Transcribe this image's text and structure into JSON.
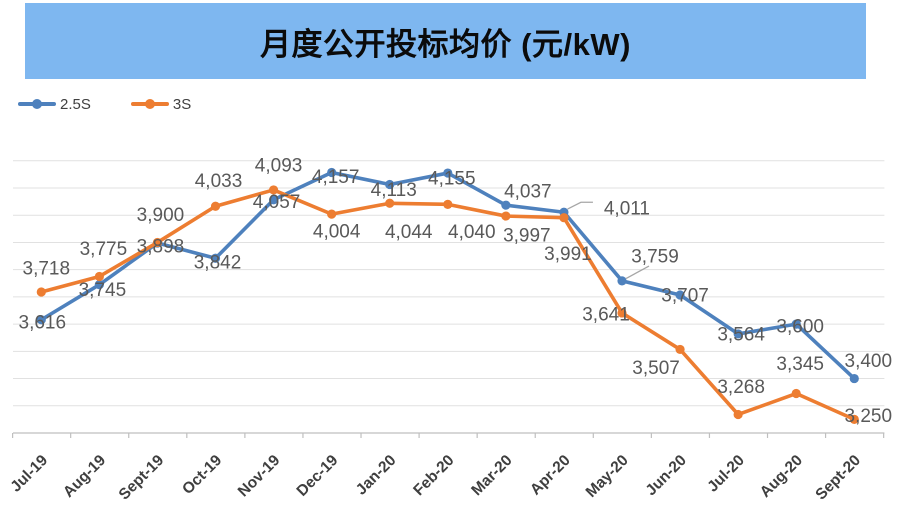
{
  "title": {
    "text": "月度公开投标均价 (元/kW)",
    "banner_color": "#7EB7F0"
  },
  "legend": {
    "items": [
      {
        "label": "2.5S",
        "color": "#4E81BD"
      },
      {
        "label": "3S",
        "color": "#ED7D31"
      }
    ]
  },
  "colors": {
    "background": "#FFFFFF",
    "data_label": "#595959",
    "axis_label": "#3F3F3F",
    "gridline": "#E1E1E1",
    "axis_line": "#BFBFBF",
    "leader_line": "#A6A6A6"
  },
  "chart_data": {
    "type": "line",
    "title": "月度公开投标均价 (元/kW)",
    "xlabel": "",
    "ylabel": "",
    "ylim": [
      3200,
      4250
    ],
    "gridlines": {
      "min": 3300,
      "max": 4200,
      "step": 100,
      "visible": true
    },
    "y_axis_labels_visible": false,
    "legend_position": "top-left",
    "categories": [
      "Jul-19",
      "Aug-19",
      "Sept-19",
      "Oct-19",
      "Nov-19",
      "Dec-19",
      "Jan-20",
      "Feb-20",
      "Mar-20",
      "Apr-20",
      "May-20",
      "Jun-20",
      "Jul-20",
      "Aug-20",
      "Sept-20"
    ],
    "series": [
      {
        "name": "2.5S",
        "color": "#4E81BD",
        "values": [
          3616,
          3745,
          3898,
          3842,
          4057,
          4157,
          4113,
          4155,
          4037,
          4011,
          3759,
          3707,
          3564,
          3600,
          3400
        ],
        "label_offsets": [
          [
            1,
            2
          ],
          [
            3,
            5
          ],
          [
            3,
            3
          ],
          [
            2,
            4
          ],
          [
            3,
            2
          ],
          [
            4,
            4
          ],
          [
            4,
            5
          ],
          [
            4,
            5
          ],
          [
            22,
            -14
          ],
          [
            63,
            -4
          ],
          [
            33,
            -25
          ],
          [
            5,
            0
          ],
          [
            3,
            0
          ],
          [
            4,
            2
          ],
          [
            14,
            -18
          ]
        ]
      },
      {
        "name": "3S",
        "color": "#ED7D31",
        "values": [
          3718,
          3775,
          3900,
          4033,
          4093,
          4004,
          4044,
          4040,
          3997,
          3991,
          3641,
          3507,
          3268,
          3345,
          3250
        ],
        "label_offsets": [
          [
            5,
            -24
          ],
          [
            4,
            -28
          ],
          [
            3,
            -28
          ],
          [
            3,
            -26
          ],
          [
            5,
            -25
          ],
          [
            5,
            17
          ],
          [
            19,
            28
          ],
          [
            24,
            27
          ],
          [
            21,
            19
          ],
          [
            4,
            36
          ],
          [
            -16,
            1
          ],
          [
            -24,
            18
          ],
          [
            3,
            -28
          ],
          [
            4,
            -30
          ],
          [
            14,
            -4
          ]
        ]
      }
    ],
    "callouts": [
      {
        "series": "2.5S",
        "category": "Apr-20",
        "label": "4,011"
      },
      {
        "series": "2.5S",
        "category": "May-20",
        "label": "3,759"
      }
    ]
  }
}
